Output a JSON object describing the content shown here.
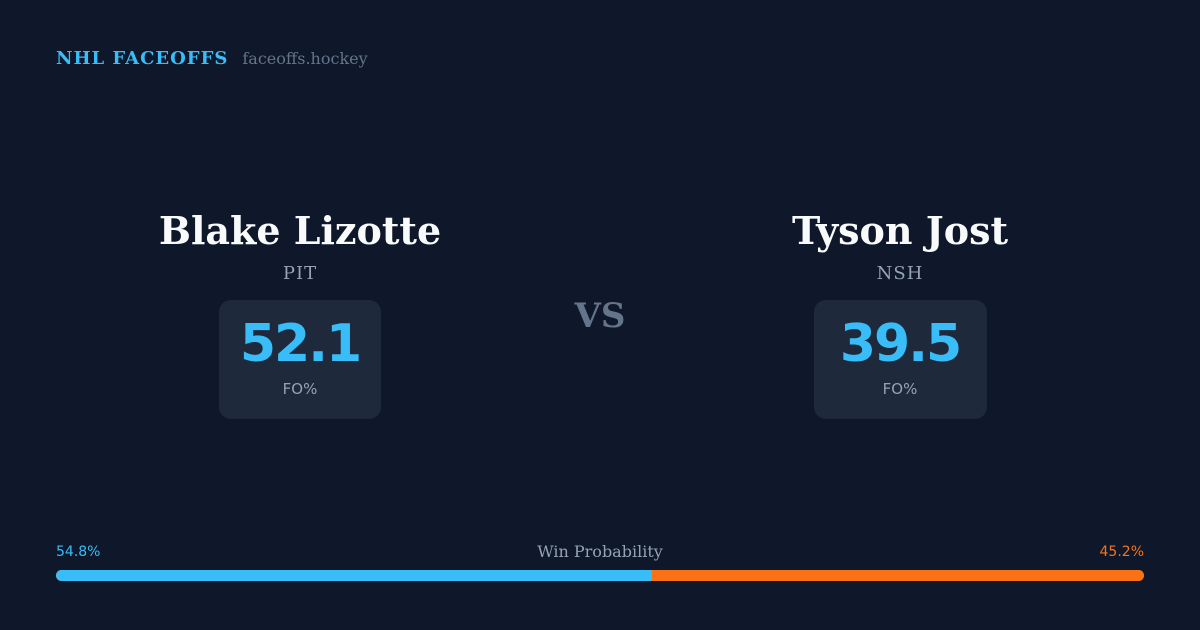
{
  "brand": {
    "title": "NHL FACEOFFS",
    "site": "faceoffs.hockey"
  },
  "players": {
    "home": {
      "name": "Blake Lizotte",
      "team": "PIT",
      "stat_value": "52.1",
      "stat_label": "FO%"
    },
    "away": {
      "name": "Tyson Jost",
      "team": "NSH",
      "stat_value": "39.5",
      "stat_label": "FO%"
    }
  },
  "versus_label": "VS",
  "win_probability": {
    "title": "Win Probability",
    "home_label": "54.8%",
    "away_label": "45.2%",
    "home_percent": 54.8,
    "away_percent": 45.2
  },
  "colors": {
    "background": "#0f172a",
    "accent_home": "#38bdf8",
    "accent_away": "#f97316",
    "card": "#1e293b"
  }
}
